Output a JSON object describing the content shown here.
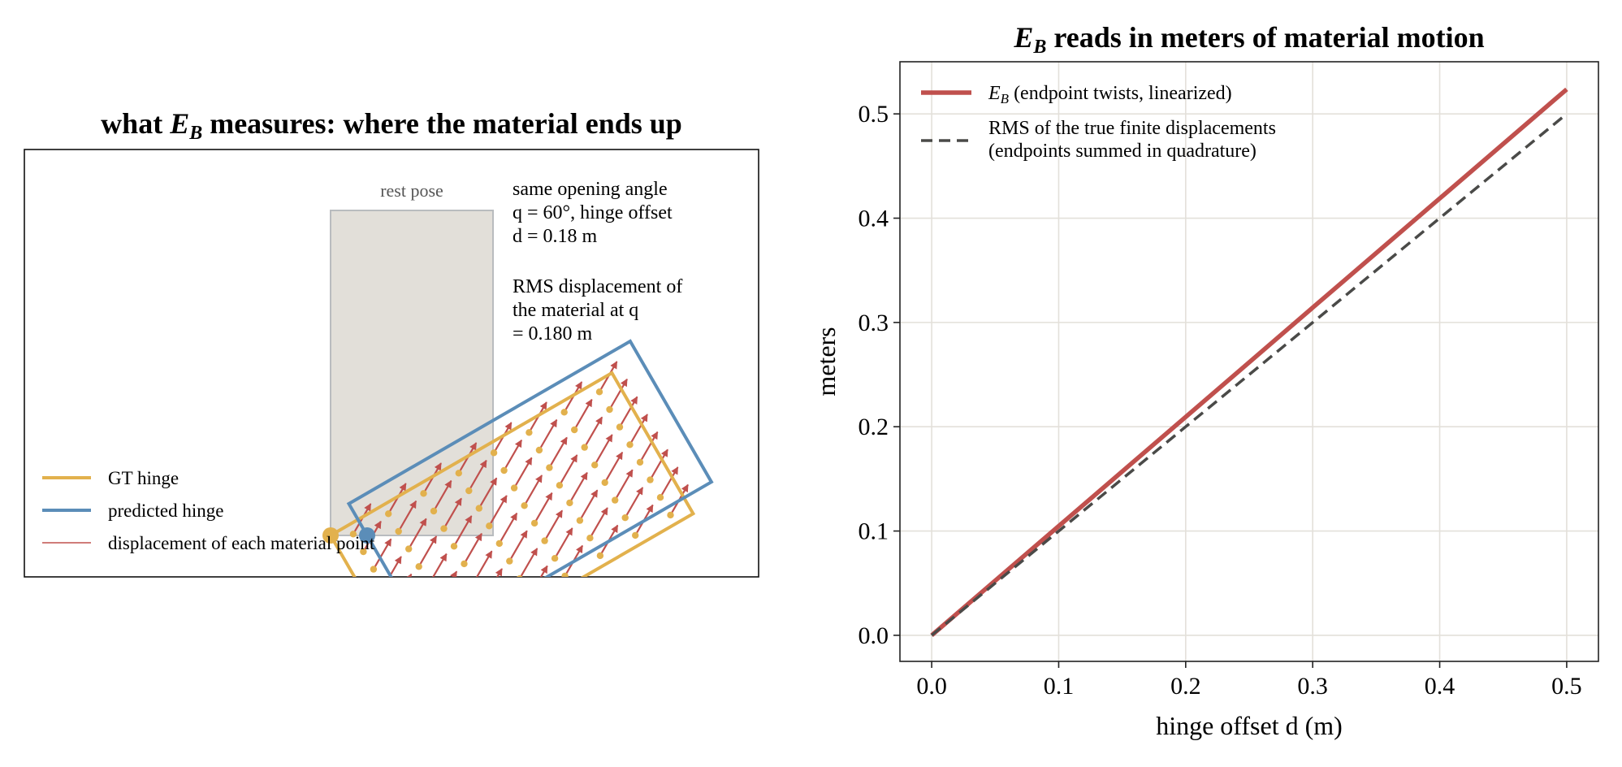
{
  "colors": {
    "gt": "#e2b14d",
    "pred": "#5b8db8",
    "disp": "#c0504d",
    "rest_fill": "#e2dfd9",
    "rest_stroke": "#b9bcbf",
    "ref_line": "#4a4a48",
    "grid": "#e3e0da",
    "axis": "#222222"
  },
  "left_panel": {
    "title_pre": "what ",
    "title_sym": "E",
    "title_sub": "B",
    "title_post": " measures: where the material ends up",
    "rest_pose_label": "rest pose",
    "info": {
      "line1": "same opening angle",
      "line2": "q = 60°, hinge offset",
      "line3": "d = 0.18 m",
      "line4": "RMS displacement of",
      "line5": "the material at q",
      "line6": "= 0.180 m"
    },
    "legend": {
      "gt": "GT hinge",
      "pred": "predicted hinge",
      "disp": "displacement of each material point"
    },
    "scene": {
      "opening_angle_deg": 60,
      "hinge_offset_m": 0.18,
      "grid_cols": 8,
      "grid_rows": 8
    }
  },
  "chart_data": {
    "type": "line",
    "title_sym": "E",
    "title_sub": "B",
    "title_rest": " reads in meters of material motion",
    "xlabel": "hinge offset d (m)",
    "ylabel": "meters",
    "xlim": [
      -0.025,
      0.525
    ],
    "ylim": [
      -0.025,
      0.55
    ],
    "xticks": [
      "0.0",
      "0.1",
      "0.2",
      "0.3",
      "0.4",
      "0.5"
    ],
    "yticks": [
      "0.0",
      "0.1",
      "0.2",
      "0.3",
      "0.4",
      "0.5"
    ],
    "grid": true,
    "legend_position": "upper-left",
    "series": [
      {
        "name_sym": "E",
        "name_sub": "B",
        "name_rest": " (endpoint twists, linearized)",
        "style": "solid",
        "x": [
          0.0,
          0.1,
          0.2,
          0.3,
          0.4,
          0.5
        ],
        "y": [
          0.0,
          0.1047,
          0.2094,
          0.3142,
          0.4189,
          0.5236
        ]
      },
      {
        "name_line1": "RMS of the true finite displacements",
        "name_line2": "(endpoints summed in quadrature)",
        "style": "dashed",
        "x": [
          0.0,
          0.1,
          0.2,
          0.3,
          0.4,
          0.5
        ],
        "y": [
          0.0,
          0.1,
          0.2,
          0.3,
          0.4,
          0.5
        ]
      }
    ]
  }
}
